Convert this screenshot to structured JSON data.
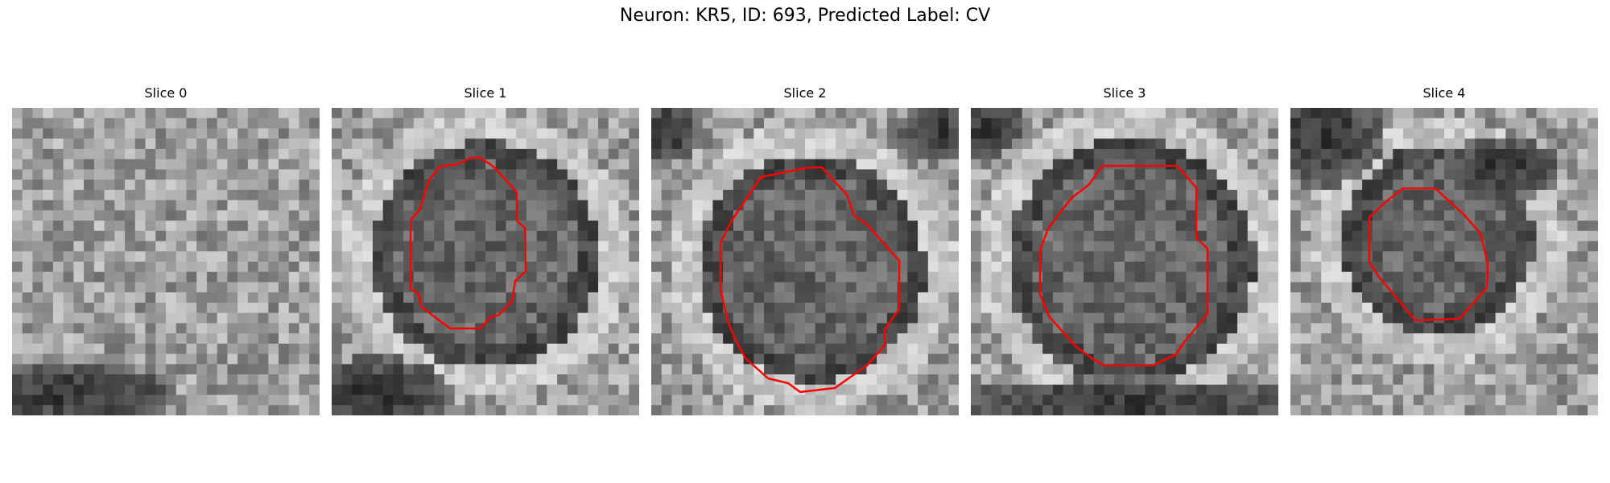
{
  "figure": {
    "title": "Neuron: KR5, ID: 693, Predicted Label: CV",
    "contour_color": "#ff0000"
  },
  "panels": [
    {
      "title": "Slice 0"
    },
    {
      "title": "Slice 1"
    },
    {
      "title": "Slice 2"
    },
    {
      "title": "Slice 3"
    },
    {
      "title": "Slice 4"
    }
  ]
}
